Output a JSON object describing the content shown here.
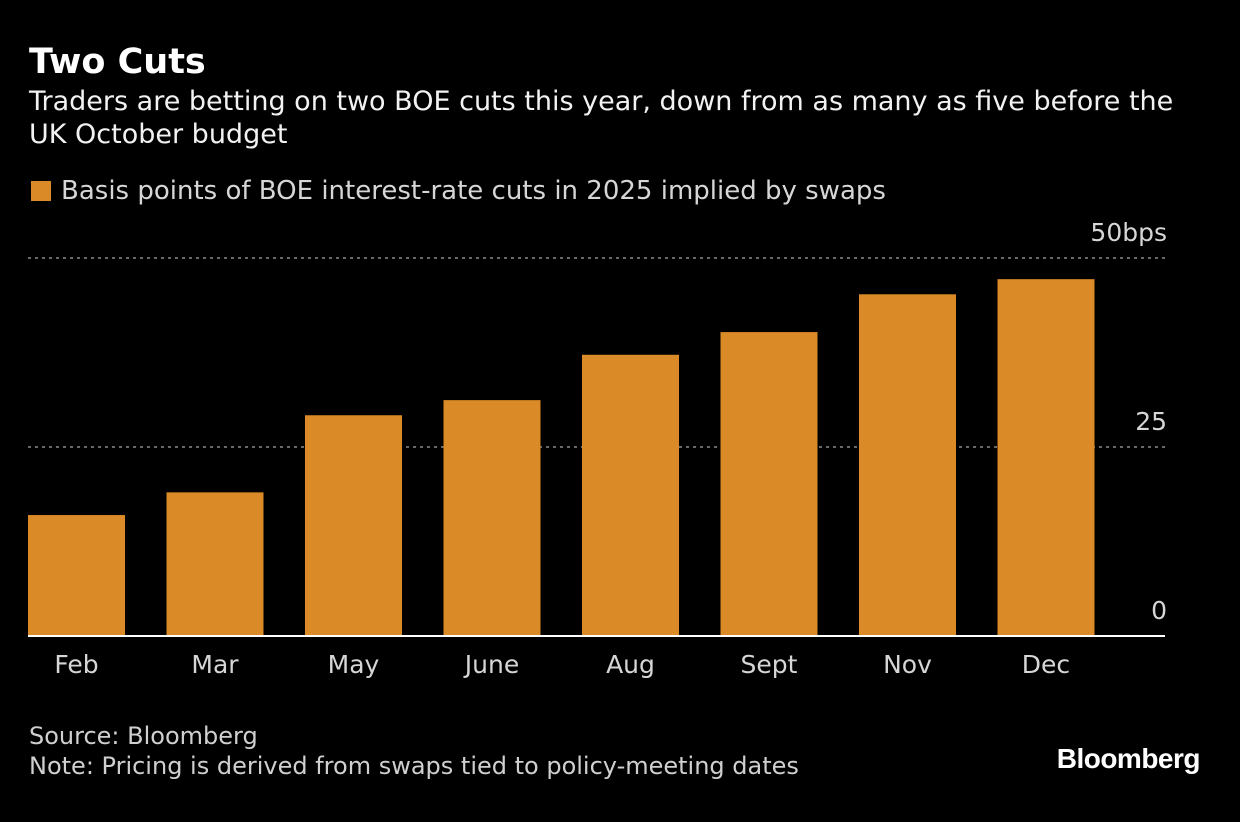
{
  "title": "Two Cuts",
  "subtitle": "Traders are betting on two BOE cuts this year, down from as many as five before the UK October budget",
  "footer": {
    "source": "Source: Bloomberg",
    "note": "Note: Pricing is derived from swaps tied to policy-meeting dates"
  },
  "brand": "Bloomberg",
  "colors": {
    "bar": "#da8a26",
    "background": "#000000",
    "grid": "#8a8a8a",
    "axis": "#ffffff"
  },
  "chart_data": {
    "type": "bar",
    "categories": [
      "Feb",
      "Mar",
      "May",
      "June",
      "Aug",
      "Sept",
      "Nov",
      "Dec"
    ],
    "series": [
      {
        "name": "Basis points of BOE interest-rate cuts in 2025 implied by swaps",
        "values": [
          16,
          19,
          29.2,
          31.2,
          37.2,
          40.2,
          45.2,
          47.2
        ]
      }
    ],
    "ylim": [
      0,
      50
    ],
    "yticks": [
      {
        "value": 50,
        "label": "50bps"
      },
      {
        "value": 25,
        "label": "25"
      },
      {
        "value": 0,
        "label": "0"
      }
    ],
    "grid": true,
    "grid_style": "dotted",
    "legend_position": "top-left",
    "yaxis_position": "right"
  }
}
